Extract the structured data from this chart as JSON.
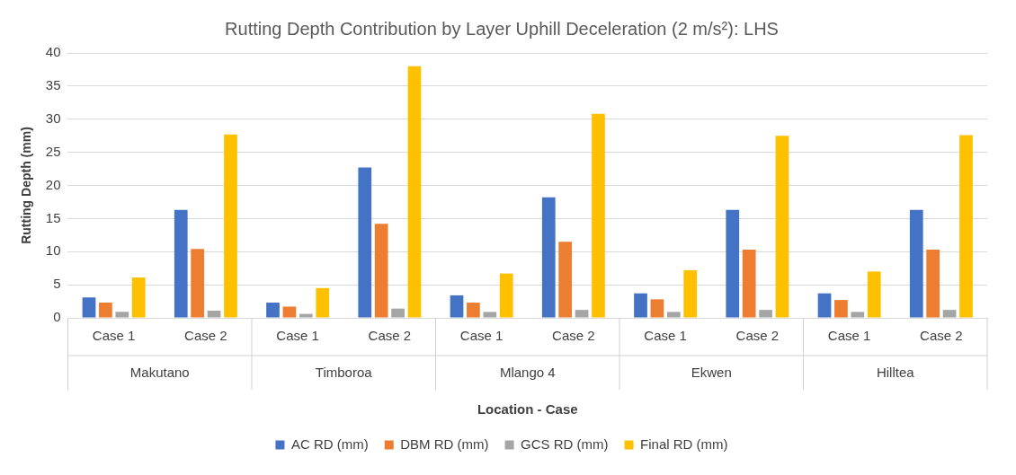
{
  "chart_data": {
    "type": "bar",
    "title": "Rutting Depth Contribution by Layer Uphill Deceleration (2 m/s²): LHS",
    "xlabel": "Location - Case",
    "ylabel": "Rutting Depth (mm)",
    "categories": [
      "Case 1",
      "Case 2",
      "Case 1",
      "Case 2",
      "Case 1",
      "Case 2",
      "Case 1",
      "Case 2",
      "Case 1",
      "Case 2"
    ],
    "annotations": [
      "Makutano",
      "Timboroa",
      "Mlango 4",
      "Ekwen",
      "Hilltea"
    ],
    "series": [
      {
        "name": "AC RD (mm)",
        "color": "#4472c4",
        "values": [
          3.1,
          16.3,
          2.3,
          22.7,
          3.4,
          18.2,
          3.7,
          16.3,
          3.7,
          16.3
        ]
      },
      {
        "name": "DBM RD (mm)",
        "color": "#ed7d31",
        "values": [
          2.3,
          10.4,
          1.7,
          14.2,
          2.3,
          11.5,
          2.8,
          10.3,
          2.7,
          10.3
        ]
      },
      {
        "name": "GCS RD (mm)",
        "color": "#a5a5a5",
        "values": [
          0.9,
          1.1,
          0.6,
          1.4,
          0.9,
          1.2,
          0.9,
          1.2,
          0.9,
          1.2
        ]
      },
      {
        "name": "Final RD (mm)",
        "color": "#ffc000",
        "values": [
          6.1,
          27.7,
          4.5,
          38.0,
          6.7,
          30.8,
          7.2,
          27.5,
          7.0,
          27.6
        ]
      }
    ],
    "ylim": [
      0,
      40
    ],
    "yticks": [
      0,
      5,
      10,
      15,
      20,
      25,
      30,
      35,
      40
    ],
    "grid": "y",
    "legend": "bottom"
  }
}
